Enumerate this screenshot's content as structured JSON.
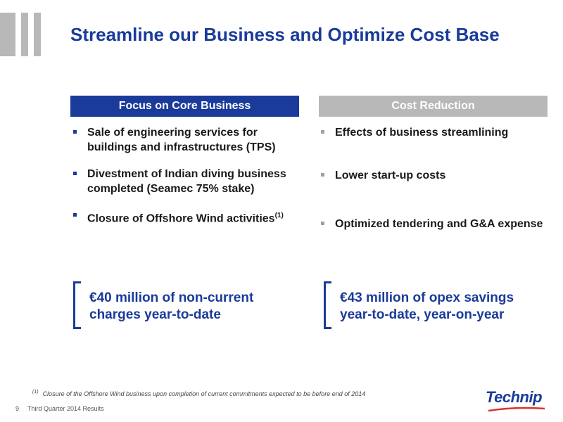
{
  "title": "Streamline our Business and Optimize Cost Base",
  "left_column": {
    "header": "Focus on Core Business",
    "bullets": [
      {
        "text": "Sale of engineering services for buildings and infrastructures (TPS)"
      },
      {
        "text": "Divestment of Indian diving business completed (Seamec 75% stake)"
      },
      {
        "text": "Closure of Offshore Wind activities",
        "sup": "(1)"
      }
    ],
    "callout": "€40 million of non-current charges year-to-date"
  },
  "right_column": {
    "header": "Cost Reduction",
    "bullets": [
      {
        "text": "Effects of business streamlining"
      },
      {
        "text": "Lower start-up costs"
      },
      {
        "text": "Optimized tendering and G&A expense"
      }
    ],
    "callout": "€43 million of opex savings year-to-date, year-on-year"
  },
  "footnote": {
    "marker": "(1)",
    "text": "Closure of the Offshore Wind business upon completion of current commitments expected to be before end of 2014"
  },
  "footer": {
    "page_number": "9",
    "report": "Third Quarter 2014 Results"
  },
  "brand": {
    "name": "Technip",
    "color": "#1a3b9a",
    "accent": "#e03030"
  },
  "colors": {
    "primary": "#1a3b9a",
    "grey": "#b8b8b8"
  }
}
